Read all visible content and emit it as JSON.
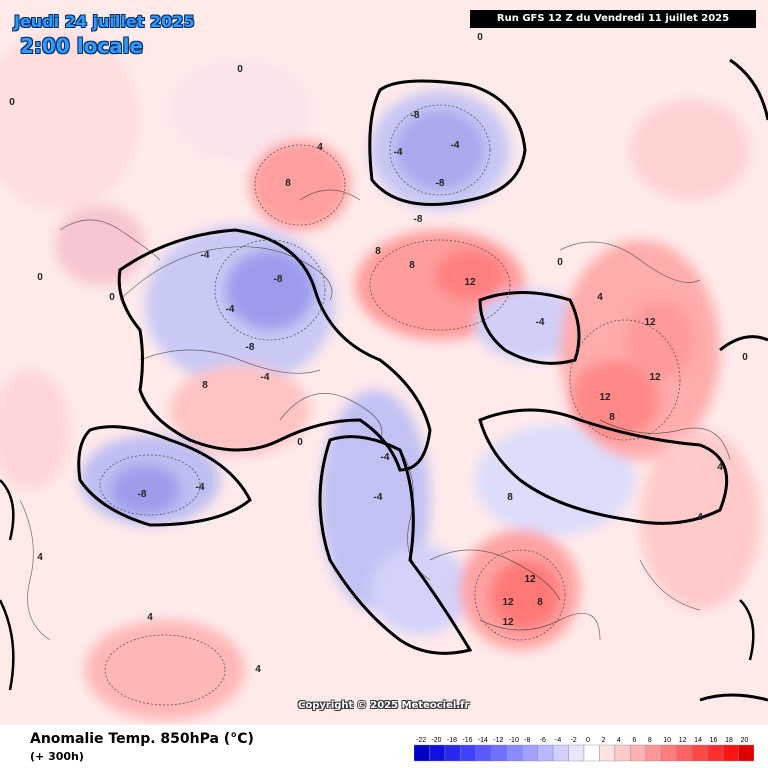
{
  "header": {
    "date_line": "Jeudi 24 juillet 2025",
    "time_line": "2:00 locale",
    "run_info": "Run GFS 12 Z du Vendredi 11 juillet 2025"
  },
  "map": {
    "copyright": "Copyright © 2025 Meteociel.fr",
    "contour_labels": [
      {
        "text": "-8"
      },
      {
        "text": "-4"
      },
      {
        "text": "-4"
      },
      {
        "text": "-8"
      },
      {
        "text": "-8"
      },
      {
        "text": "-4"
      },
      {
        "text": "-8"
      },
      {
        "text": "-4"
      },
      {
        "text": "-8"
      },
      {
        "text": "-4"
      },
      {
        "text": "-8"
      },
      {
        "text": "-4"
      },
      {
        "text": "-4"
      },
      {
        "text": "-4"
      },
      {
        "text": "8"
      },
      {
        "text": "8"
      },
      {
        "text": "12"
      },
      {
        "text": "8"
      },
      {
        "text": "12"
      },
      {
        "text": "12"
      },
      {
        "text": "12"
      },
      {
        "text": "12"
      },
      {
        "text": "12"
      },
      {
        "text": "12"
      },
      {
        "text": "8"
      },
      {
        "text": "8"
      },
      {
        "text": "8"
      },
      {
        "text": "4"
      },
      {
        "text": "4"
      },
      {
        "text": "4"
      },
      {
        "text": "4"
      },
      {
        "text": "4"
      },
      {
        "text": "0"
      },
      {
        "text": "0"
      },
      {
        "text": "0"
      },
      {
        "text": "0"
      },
      {
        "text": "0"
      },
      {
        "text": "0"
      },
      {
        "text": "0"
      },
      {
        "text": "0"
      },
      {
        "text": "-4"
      },
      {
        "text": "4"
      },
      {
        "text": "4"
      },
      {
        "text": "8"
      }
    ]
  },
  "footer": {
    "variable_title": "Anomalie Temp. 850hPa (°C)",
    "lead_time": "(+ 300h)"
  },
  "legend": {
    "ticks": [
      "-22",
      "-20",
      "-18",
      "-16",
      "-14",
      "-12",
      "-10",
      "-8",
      "-6",
      "-4",
      "-2",
      "0",
      "2",
      "4",
      "6",
      "8",
      "10",
      "12",
      "14",
      "16",
      "18",
      "20"
    ],
    "colors": [
      "#0000c8",
      "#1010e0",
      "#2828f0",
      "#4040ff",
      "#5a5aff",
      "#7070ff",
      "#8a8aff",
      "#a0a0ff",
      "#b8b8ff",
      "#d0d0ff",
      "#e6e6ff",
      "#ffffff",
      "#ffe2e2",
      "#ffcaca",
      "#ffb0b0",
      "#ff9696",
      "#ff7c7c",
      "#ff6262",
      "#ff4848",
      "#ff2e2e",
      "#ff1414",
      "#e00000"
    ]
  }
}
